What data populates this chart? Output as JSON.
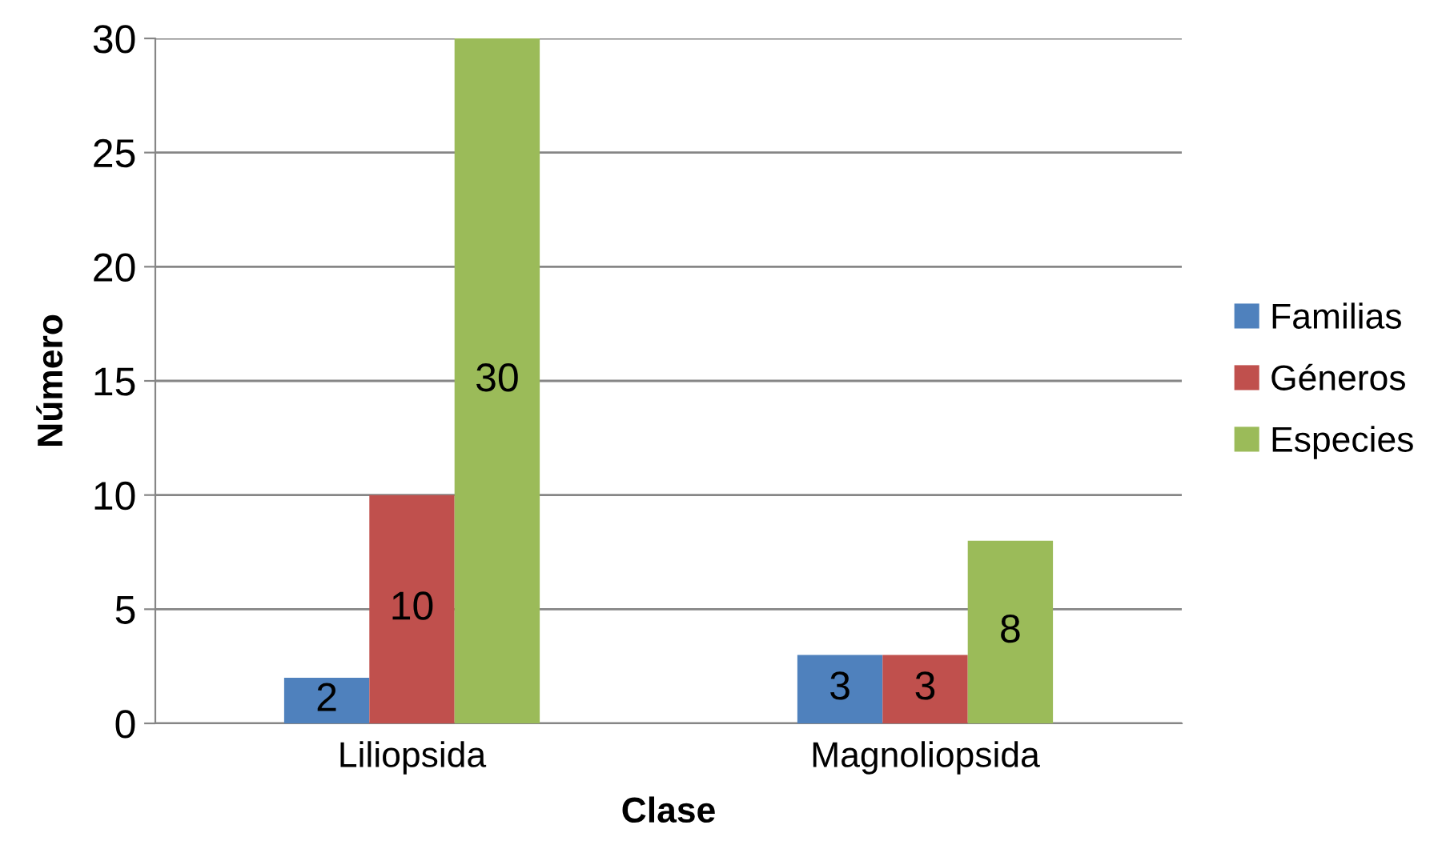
{
  "chart_data": {
    "type": "bar",
    "xlabel": "Clase",
    "ylabel": "Número",
    "categories": [
      "Liliopsida",
      "Magnoliopsida"
    ],
    "series": [
      {
        "name": "Familias",
        "color": "#4f81bd",
        "values": [
          2,
          3
        ]
      },
      {
        "name": "Géneros",
        "color": "#c0504d",
        "values": [
          10,
          3
        ]
      },
      {
        "name": "Especies",
        "color": "#9bbb59",
        "values": [
          30,
          8
        ]
      }
    ],
    "ylim": [
      0,
      30
    ],
    "yticks": [
      0,
      5,
      10,
      15,
      20,
      25,
      30
    ],
    "grid": "y",
    "legend": "right",
    "data_labels": true
  }
}
